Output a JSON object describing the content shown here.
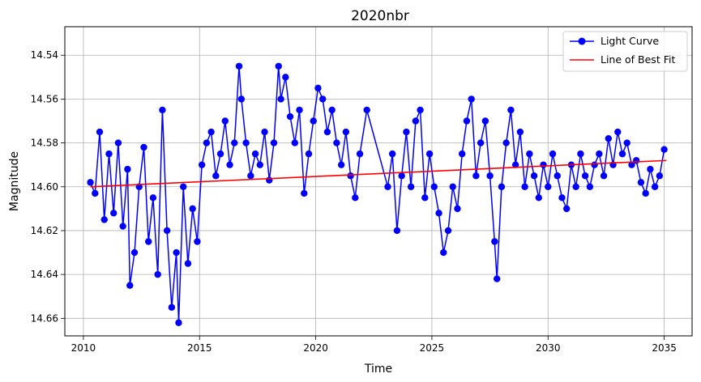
{
  "chart_data": {
    "type": "line",
    "title": "2020nbr",
    "xlabel": "Time",
    "ylabel": "Magnitude",
    "xlim": [
      2009.2,
      2036.2
    ],
    "ylim": [
      14.668,
      14.527
    ],
    "y_inverted": true,
    "grid": true,
    "legend_position": "top-right",
    "x_ticks": [
      2010,
      2015,
      2020,
      2025,
      2030,
      2035
    ],
    "x_tick_labels": [
      "2010",
      "2015",
      "2020",
      "2025",
      "2030",
      "2035"
    ],
    "y_ticks": [
      14.54,
      14.56,
      14.58,
      14.6,
      14.62,
      14.64,
      14.66
    ],
    "y_tick_labels": [
      "14.54",
      "14.56",
      "14.58",
      "14.60",
      "14.62",
      "14.64",
      "14.66"
    ],
    "series": [
      {
        "name": "Light Curve",
        "color": "#0000ff",
        "marker": "circle",
        "x": [
          2010.3,
          2010.5,
          2010.7,
          2010.9,
          2011.1,
          2011.3,
          2011.5,
          2011.7,
          2011.9,
          2012.0,
          2012.2,
          2012.4,
          2012.6,
          2012.8,
          2013.0,
          2013.2,
          2013.4,
          2013.6,
          2013.8,
          2014.0,
          2014.1,
          2014.3,
          2014.5,
          2014.7,
          2014.9,
          2015.1,
          2015.3,
          2015.5,
          2015.7,
          2015.9,
          2016.1,
          2016.3,
          2016.5,
          2016.7,
          2016.8,
          2017.0,
          2017.2,
          2017.4,
          2017.6,
          2017.8,
          2018.0,
          2018.2,
          2018.4,
          2018.5,
          2018.7,
          2018.9,
          2019.1,
          2019.3,
          2019.5,
          2019.7,
          2019.9,
          2020.1,
          2020.3,
          2020.5,
          2020.7,
          2020.9,
          2021.1,
          2021.3,
          2021.5,
          2021.7,
          2021.9,
          2022.2,
          2023.1,
          2023.3,
          2023.5,
          2023.7,
          2023.9,
          2024.1,
          2024.3,
          2024.5,
          2024.7,
          2024.9,
          2025.1,
          2025.3,
          2025.5,
          2025.7,
          2025.9,
          2026.1,
          2026.3,
          2026.5,
          2026.7,
          2026.9,
          2027.1,
          2027.3,
          2027.5,
          2027.7,
          2027.8,
          2028.0,
          2028.2,
          2028.4,
          2028.6,
          2028.8,
          2029.0,
          2029.2,
          2029.4,
          2029.6,
          2029.8,
          2030.0,
          2030.2,
          2030.4,
          2030.6,
          2030.8,
          2031.0,
          2031.2,
          2031.4,
          2031.6,
          2031.8,
          2032.0,
          2032.2,
          2032.4,
          2032.6,
          2032.8,
          2033.0,
          2033.2,
          2033.4,
          2033.6,
          2033.8,
          2034.0,
          2034.2,
          2034.4,
          2034.6,
          2034.8,
          2035.0
        ],
        "y": [
          14.598,
          14.603,
          14.575,
          14.615,
          14.585,
          14.612,
          14.58,
          14.618,
          14.592,
          14.645,
          14.63,
          14.6,
          14.582,
          14.625,
          14.605,
          14.64,
          14.565,
          14.62,
          14.655,
          14.63,
          14.662,
          14.6,
          14.635,
          14.61,
          14.625,
          14.59,
          14.58,
          14.575,
          14.595,
          14.585,
          14.57,
          14.59,
          14.58,
          14.545,
          14.56,
          14.58,
          14.595,
          14.585,
          14.59,
          14.575,
          14.597,
          14.58,
          14.545,
          14.56,
          14.55,
          14.568,
          14.58,
          14.565,
          14.603,
          14.585,
          14.57,
          14.555,
          14.56,
          14.575,
          14.565,
          14.58,
          14.59,
          14.575,
          14.595,
          14.605,
          14.585,
          14.565,
          14.6,
          14.585,
          14.62,
          14.595,
          14.575,
          14.6,
          14.57,
          14.565,
          14.605,
          14.585,
          14.6,
          14.612,
          14.63,
          14.62,
          14.6,
          14.61,
          14.585,
          14.57,
          14.56,
          14.595,
          14.58,
          14.57,
          14.595,
          14.625,
          14.642,
          14.6,
          14.58,
          14.565,
          14.59,
          14.575,
          14.6,
          14.585,
          14.595,
          14.605,
          14.59,
          14.6,
          14.585,
          14.595,
          14.605,
          14.61,
          14.59,
          14.6,
          14.585,
          14.595,
          14.6,
          14.59,
          14.585,
          14.595,
          14.578,
          14.59,
          14.575,
          14.585,
          14.58,
          14.59,
          14.588,
          14.598,
          14.603,
          14.592,
          14.6,
          14.595,
          14.583
        ]
      },
      {
        "name": "Line of Best Fit",
        "color": "#ff0000",
        "x": [
          2010.3,
          2035.1
        ],
        "y": [
          14.6,
          14.588
        ]
      }
    ]
  }
}
